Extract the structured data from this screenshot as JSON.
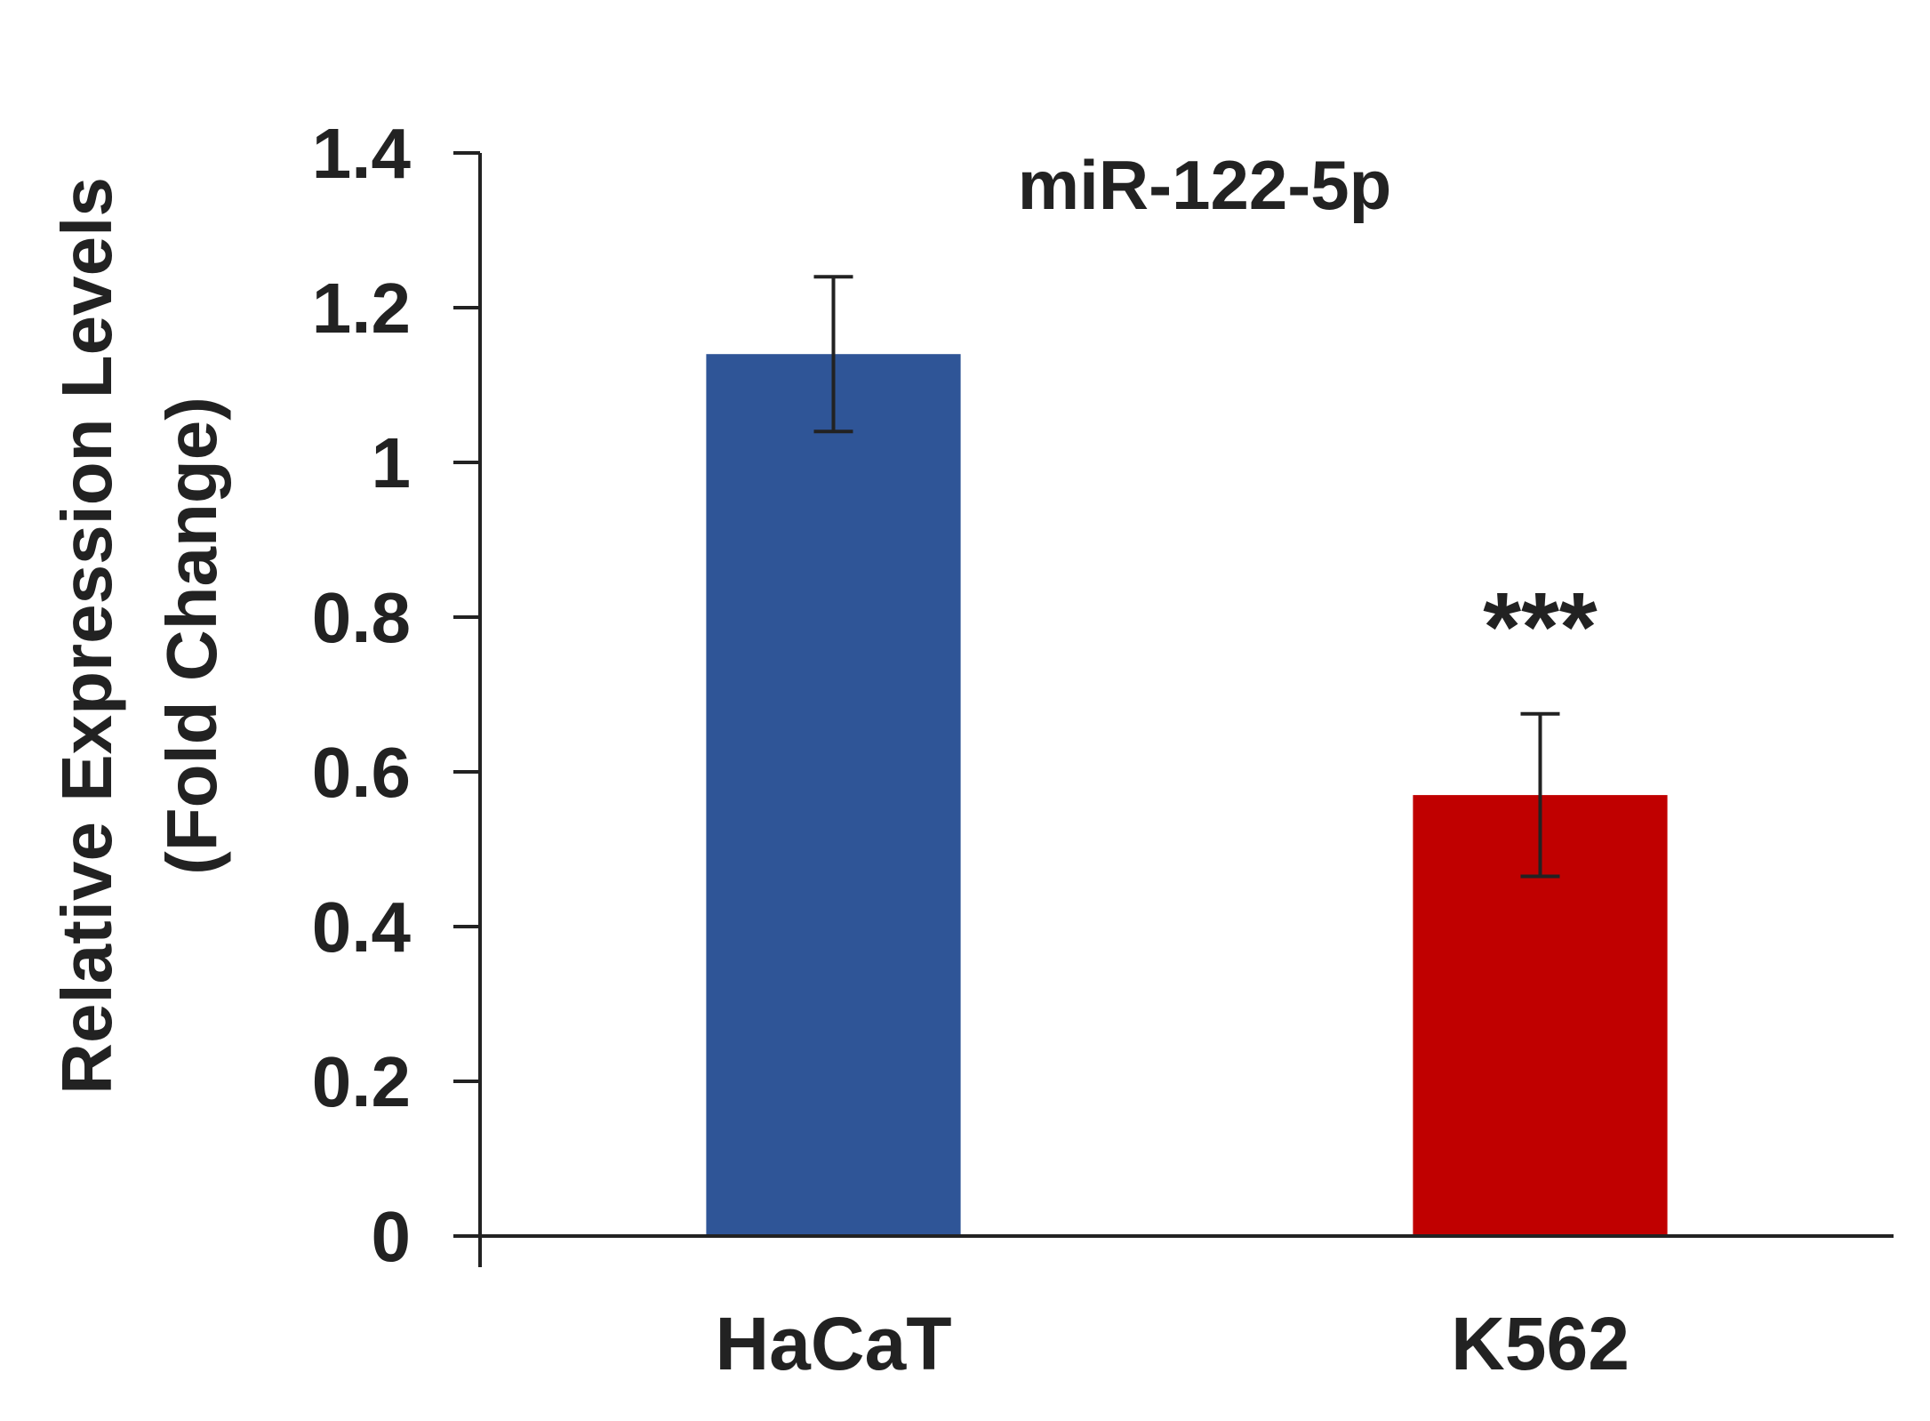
{
  "chart_data": {
    "type": "bar",
    "title": "miR-122-5p",
    "ylabel_lines": [
      "Relative  Expression Levels",
      "(Fold Change)"
    ],
    "xlabel": "",
    "categories": [
      "HaCaT",
      "K562"
    ],
    "values": [
      1.14,
      0.57
    ],
    "errors": [
      0.1,
      0.105
    ],
    "colors": [
      "#2f5597",
      "#c00000"
    ],
    "significance": [
      "",
      "***"
    ],
    "ylim": [
      0,
      1.4
    ],
    "yticks": [
      0,
      0.2,
      0.4,
      0.6,
      0.8,
      1,
      1.2,
      1.4
    ],
    "ytick_labels": [
      "0",
      "0.2",
      "0.4",
      "0.6",
      "0.8",
      "1",
      "1.2",
      "1.4"
    ],
    "grid": false,
    "legend": "none"
  }
}
